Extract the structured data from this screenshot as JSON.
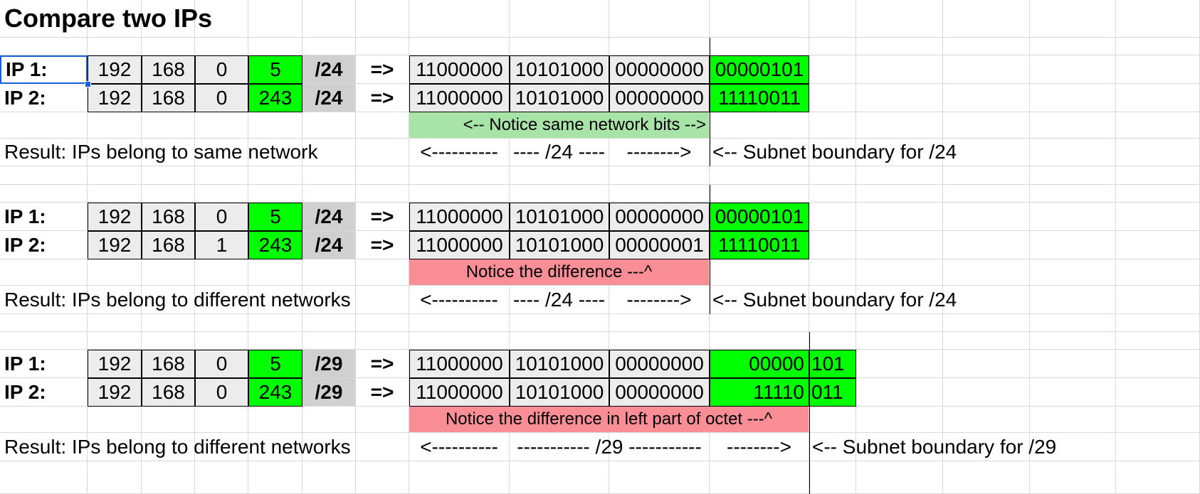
{
  "sheet": {
    "title": "Compare two IPs",
    "arrow": "=>",
    "labels": {
      "ip1": "IP  1:",
      "ip2": "IP 2:"
    },
    "blocks": [
      {
        "ip1": {
          "octets": [
            "192",
            "168",
            "0",
            "5"
          ],
          "prefix": "/24",
          "bits": [
            "11000000",
            "10101000",
            "00000000",
            "00000101"
          ]
        },
        "ip2": {
          "octets": [
            "192",
            "168",
            "0",
            "243"
          ],
          "prefix": "/24",
          "bits": [
            "11000000",
            "10101000",
            "00000000",
            "11110011"
          ]
        },
        "note": "<-- Notice same network bits -->",
        "note_color": "#a8e4a8",
        "result": "Result: IPs belong to same network",
        "boundary_parts": [
          "<----------",
          "---- /24 ----",
          "-------->"
        ],
        "boundary_label": "<-- Subnet boundary for /24"
      },
      {
        "ip1": {
          "octets": [
            "192",
            "168",
            "0",
            "5"
          ],
          "prefix": "/24",
          "bits": [
            "11000000",
            "10101000",
            "00000000",
            "00000101"
          ]
        },
        "ip2": {
          "octets": [
            "192",
            "168",
            "1",
            "243"
          ],
          "prefix": "/24",
          "bits": [
            "11000000",
            "10101000",
            "00000001",
            "11110011"
          ]
        },
        "note": "Notice the difference ---^",
        "note_color": "#fa8e96",
        "result": "Result: IPs belong to different networks",
        "boundary_parts": [
          "<----------",
          "---- /24 ----",
          "-------->"
        ],
        "boundary_label": "<-- Subnet boundary for /24"
      },
      {
        "ip1": {
          "octets": [
            "192",
            "168",
            "0",
            "5"
          ],
          "prefix": "/29",
          "bits": [
            "11000000",
            "10101000",
            "00000000",
            "00000",
            "101"
          ]
        },
        "ip2": {
          "octets": [
            "192",
            "168",
            "0",
            "243"
          ],
          "prefix": "/29",
          "bits": [
            "11000000",
            "10101000",
            "00000000",
            "11110",
            "011"
          ]
        },
        "note": "Notice the difference in left part of octet ---^",
        "note_color": "#fa8e96",
        "result": "Result: IPs belong to different networks",
        "boundary_parts": [
          "<----------",
          "----------- /29 -----------",
          "-------->"
        ],
        "boundary_label": "<-- Subnet boundary for /29"
      }
    ],
    "colors": {
      "highlight_green": "#00ff00",
      "prefix_gray": "#d0d0d0",
      "octet_gray": "#ececec",
      "selection": "#1a5fd9"
    }
  }
}
